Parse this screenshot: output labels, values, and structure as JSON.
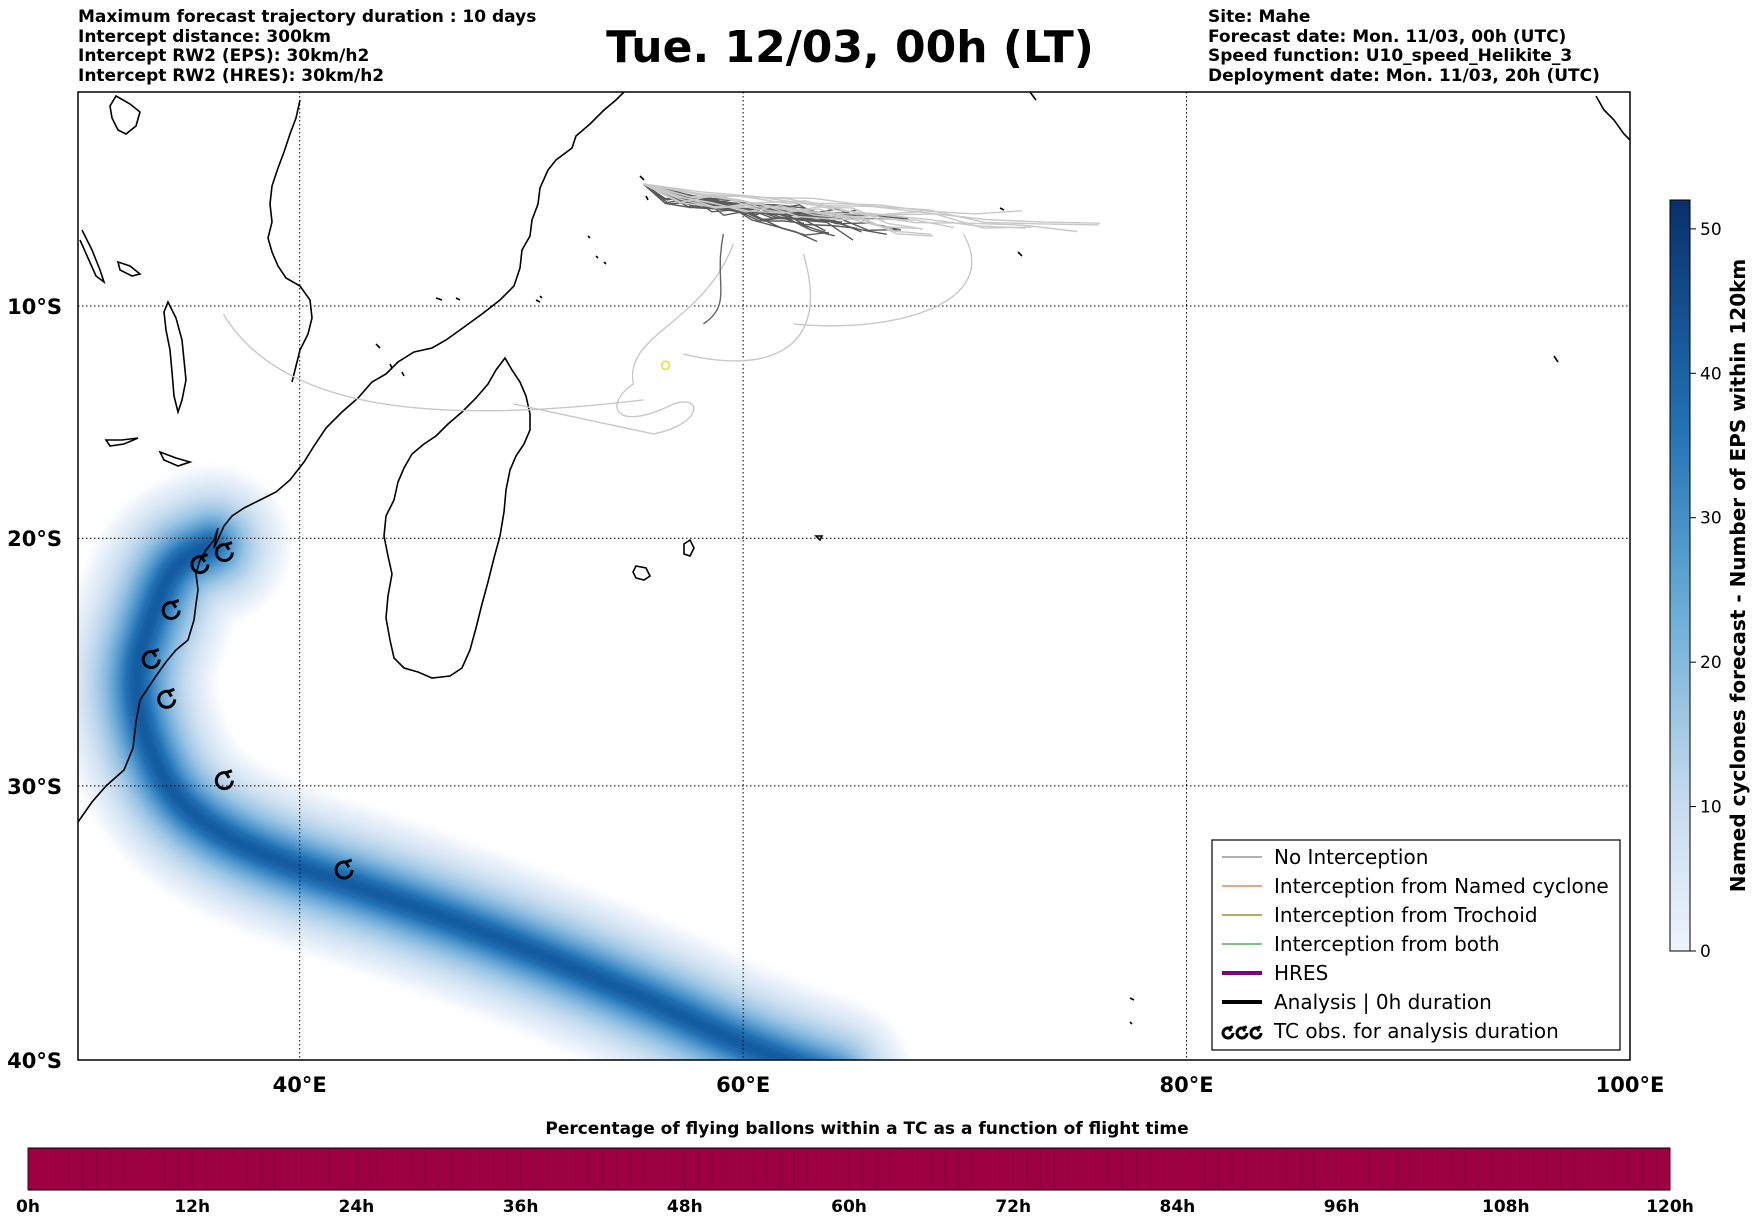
{
  "header": {
    "left": [
      "Maximum forecast trajectory duration : 10 days",
      "Intercept distance: 300km",
      "Intercept RW2 (EPS):  30km/h2",
      "Intercept RW2 (HRES): 30km/h2"
    ],
    "title": "Tue. 12/03, 00h (LT)",
    "right": [
      "Site: Mahe",
      "Forecast date: Mon. 11/03, 00h (UTC)",
      "Speed function: U10_speed_Helikite_3",
      "Deployment date: Mon. 11/03, 20h (UTC)"
    ]
  },
  "map": {
    "lon_range": [
      30,
      100
    ],
    "lat_range": [
      -40,
      -0.5
    ],
    "lat_ticks": [
      {
        "value": -10,
        "label": "10°S"
      },
      {
        "value": -20,
        "label": "20°S"
      },
      {
        "value": -30,
        "label": "30°S"
      },
      {
        "value": -40,
        "label": "40°S"
      }
    ],
    "lon_ticks": [
      {
        "value": 40,
        "label": "40°E"
      },
      {
        "value": 60,
        "label": "60°E"
      },
      {
        "value": 80,
        "label": "80°E"
      },
      {
        "value": 100,
        "label": "100°E"
      }
    ],
    "grid": true,
    "grid_style": "dotted",
    "cyclone_track_centers": [
      [
        36.0,
        -20.3
      ],
      [
        34.3,
        -21.0
      ],
      [
        33.2,
        -23.5
      ],
      [
        32.5,
        -25.7
      ],
      [
        33.0,
        -28.2
      ],
      [
        34.5,
        -30.8
      ],
      [
        38.0,
        -32.6
      ],
      [
        44.0,
        -34.2
      ],
      [
        50.0,
        -36.0
      ],
      [
        56.0,
        -38.0
      ],
      [
        60.0,
        -39.5
      ],
      [
        64.0,
        -40.6
      ]
    ],
    "tc_observations": [
      [
        36.6,
        -20.6
      ],
      [
        35.5,
        -21.1
      ],
      [
        34.2,
        -23.0
      ],
      [
        33.3,
        -25.0
      ],
      [
        34.0,
        -26.6
      ],
      [
        36.6,
        -29.8
      ],
      [
        42.0,
        -33.2
      ]
    ],
    "balloon_site": [
      55.5,
      -4.6
    ],
    "yellow_loop_center": [
      56.5,
      -12.6
    ]
  },
  "legend": {
    "placement": "lower-right",
    "items": [
      {
        "label": "No Interception",
        "color": "#808080",
        "style": "line-thin"
      },
      {
        "label": "Interception from Named cyclone",
        "color": "#e8682a",
        "style": "line-thin"
      },
      {
        "label": "Interception from Trochoid",
        "color": "#808000",
        "style": "line-thin"
      },
      {
        "label": "Interception from both",
        "color": "#3a9a3a",
        "style": "line-thin"
      },
      {
        "label": "HRES",
        "color": "#800080",
        "style": "line-thick"
      },
      {
        "label": "Analysis | 0h duration",
        "color": "#000000",
        "style": "line-thick"
      },
      {
        "label": "TC obs. for analysis duration",
        "color": "#000000",
        "style": "tc-symbols"
      }
    ]
  },
  "colorbar": {
    "label": "Named cyclones forecast - Number of EPS within 120km",
    "min": 0,
    "max": 52,
    "ticks": [
      0,
      10,
      20,
      30,
      40,
      50
    ],
    "color_low": "#e8f1fa",
    "color_high": "#08306b"
  },
  "timebar": {
    "title": "Percentage of flying ballons within a TC as a function of flight time",
    "color": "#9e0142",
    "ticks": [
      "0h",
      "12h",
      "24h",
      "36h",
      "48h",
      "60h",
      "72h",
      "84h",
      "96h",
      "108h",
      "120h"
    ]
  }
}
